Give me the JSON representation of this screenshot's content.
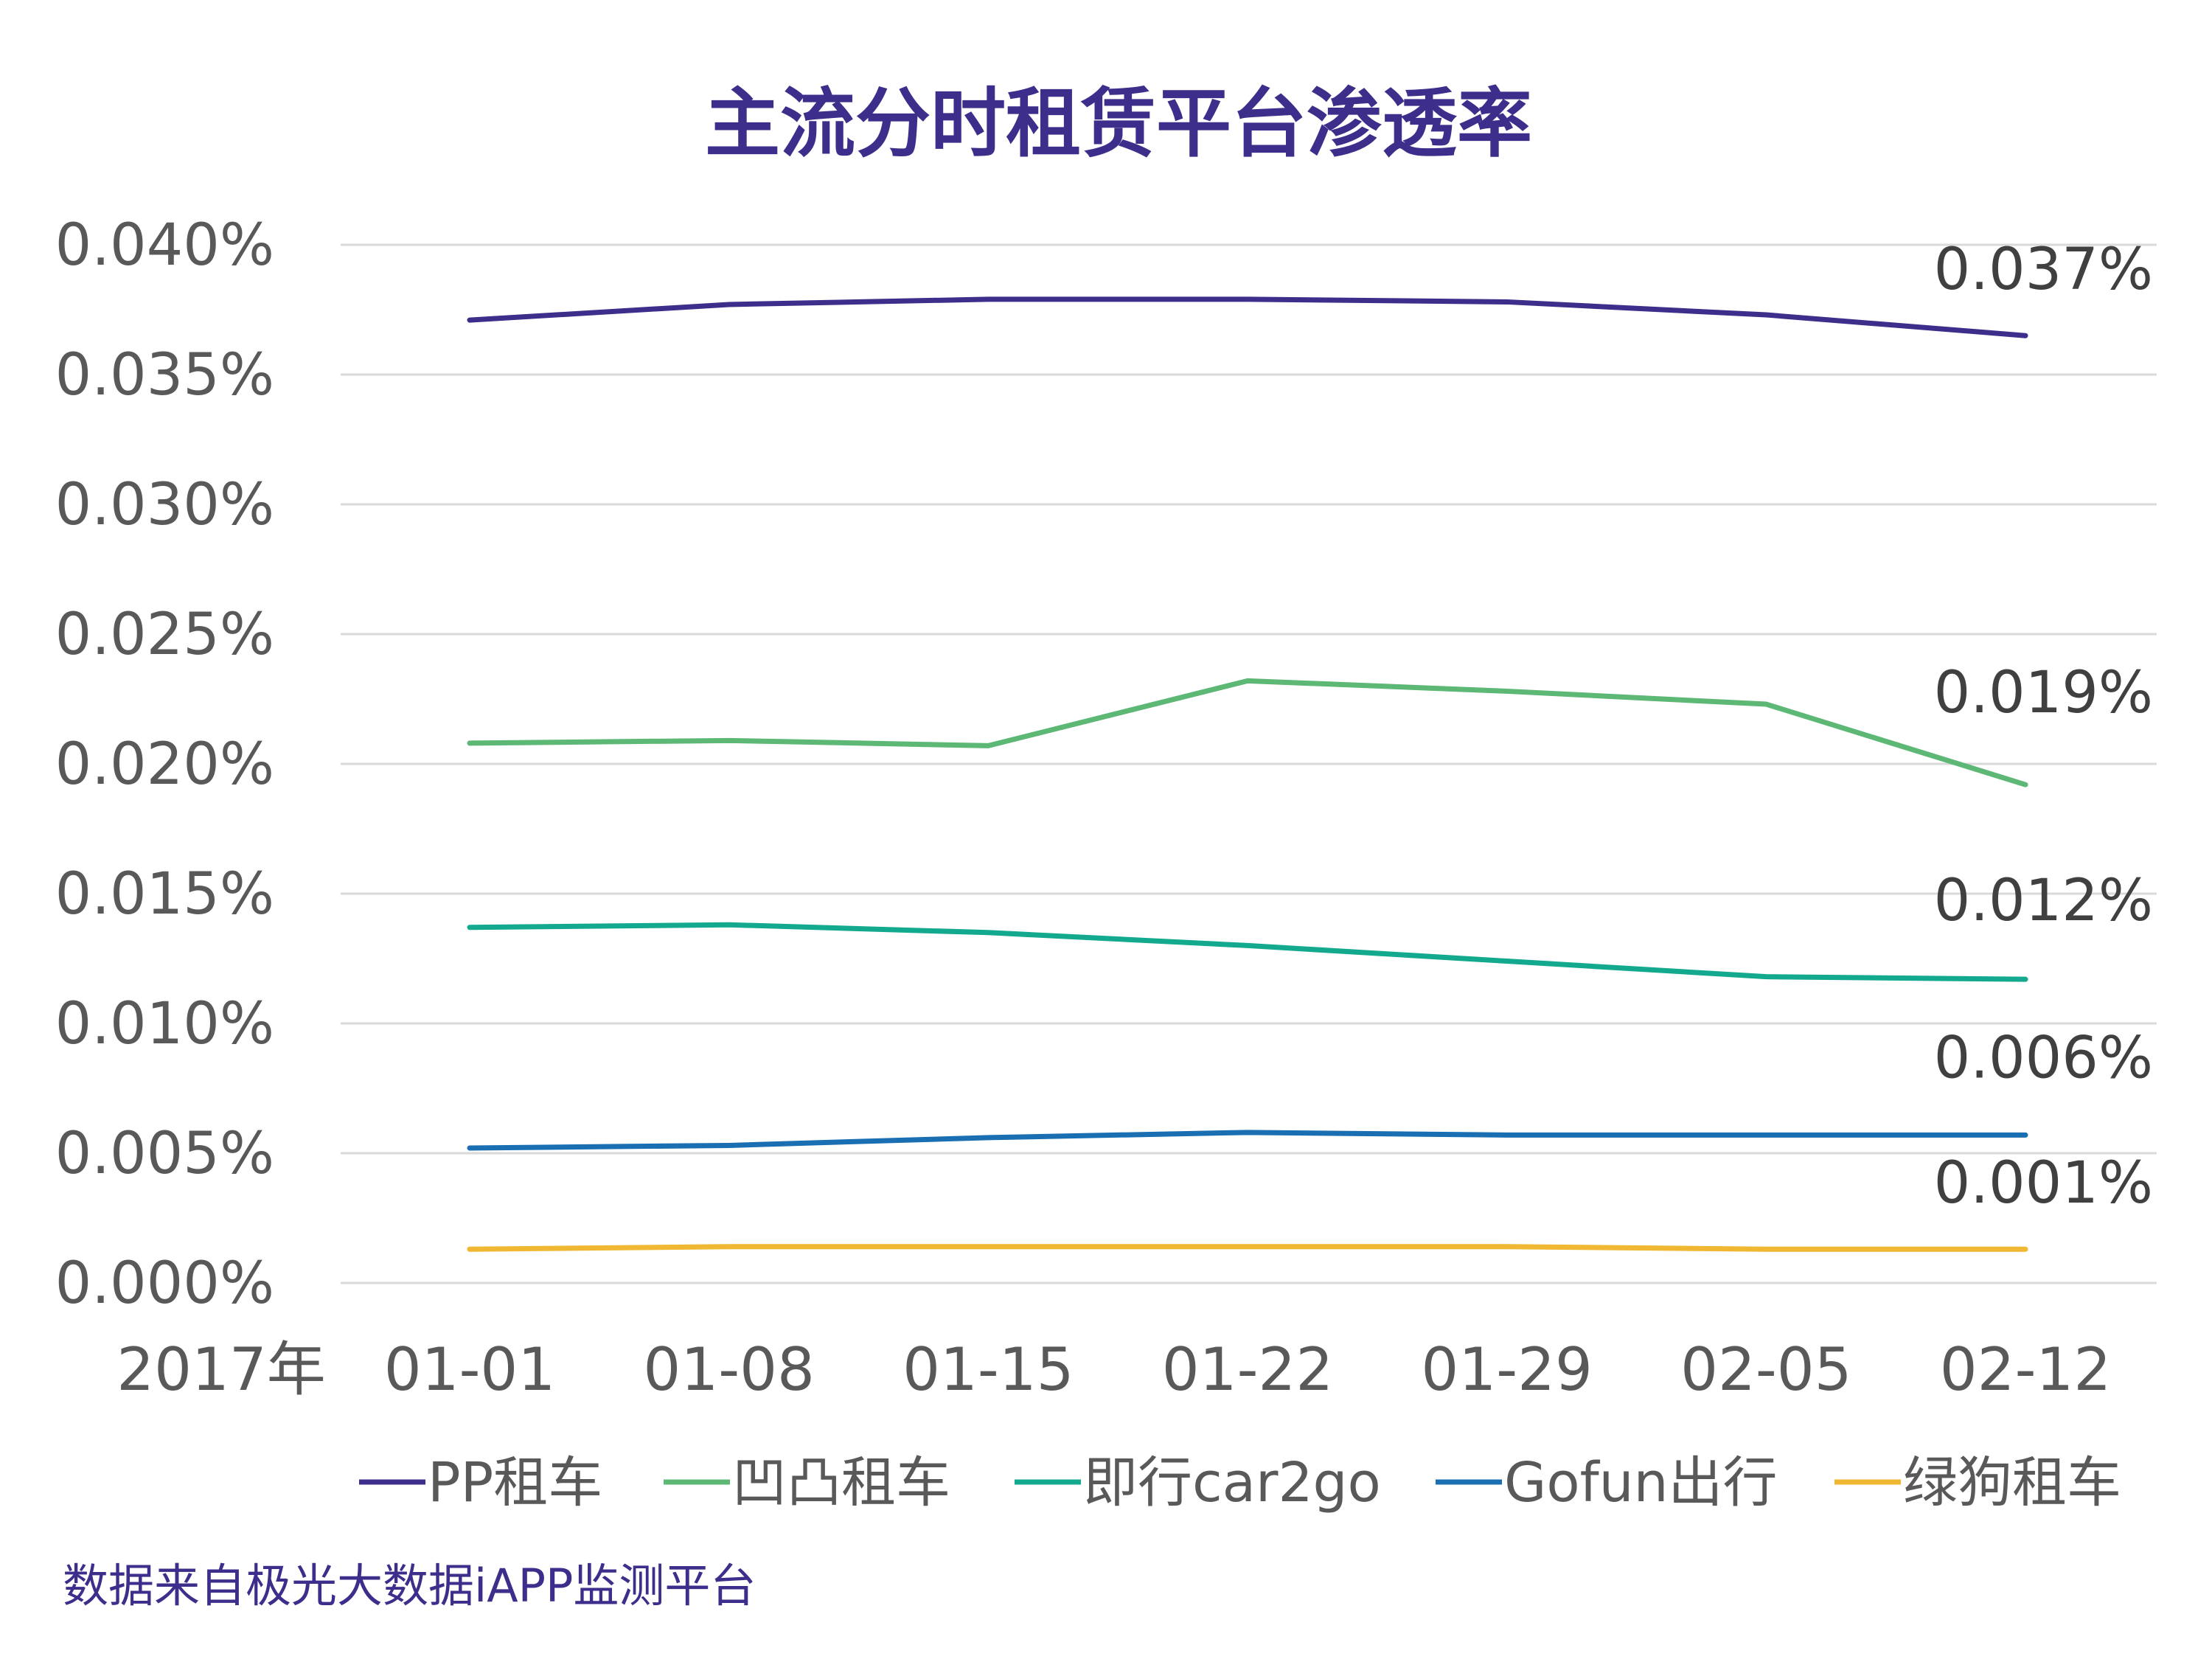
{
  "chart_data": {
    "type": "line",
    "title": "主流分时租赁平台渗透率",
    "x_prefix_label": "2017年",
    "categories": [
      "01-01",
      "01-08",
      "01-15",
      "01-22",
      "01-29",
      "02-05",
      "02-12"
    ],
    "ylim": [
      0.0,
      0.04
    ],
    "yticks": [
      "0.000%",
      "0.005%",
      "0.010%",
      "0.015%",
      "0.020%",
      "0.025%",
      "0.030%",
      "0.035%",
      "0.040%"
    ],
    "grid": true,
    "legend_position": "bottom",
    "series": [
      {
        "name": "PP租车",
        "color": "#3d2e8c",
        "values": [
          0.0371,
          0.0377,
          0.0379,
          0.0379,
          0.0378,
          0.0373,
          0.0365
        ],
        "end_label": "0.037%"
      },
      {
        "name": "凹凸租车",
        "color": "#5cb874",
        "values": [
          0.0208,
          0.0209,
          0.0207,
          0.0232,
          0.0228,
          0.0223,
          0.0192
        ],
        "end_label": "0.019%"
      },
      {
        "name": "即行car2go",
        "color": "#13a98f",
        "values": [
          0.0137,
          0.0138,
          0.0135,
          0.013,
          0.0124,
          0.0118,
          0.0117
        ],
        "end_label": "0.012%"
      },
      {
        "name": "Gofun出行",
        "color": "#1a6fb3",
        "values": [
          0.0052,
          0.0053,
          0.0056,
          0.0058,
          0.0057,
          0.0057,
          0.0057
        ],
        "end_label": "0.006%"
      },
      {
        "name": "绿狗租车",
        "color": "#f0b733",
        "values": [
          0.0013,
          0.0014,
          0.0014,
          0.0014,
          0.0014,
          0.0013,
          0.0013
        ],
        "end_label": "0.001%"
      }
    ]
  },
  "source_note": "数据来自极光大数据iAPP监测平台"
}
